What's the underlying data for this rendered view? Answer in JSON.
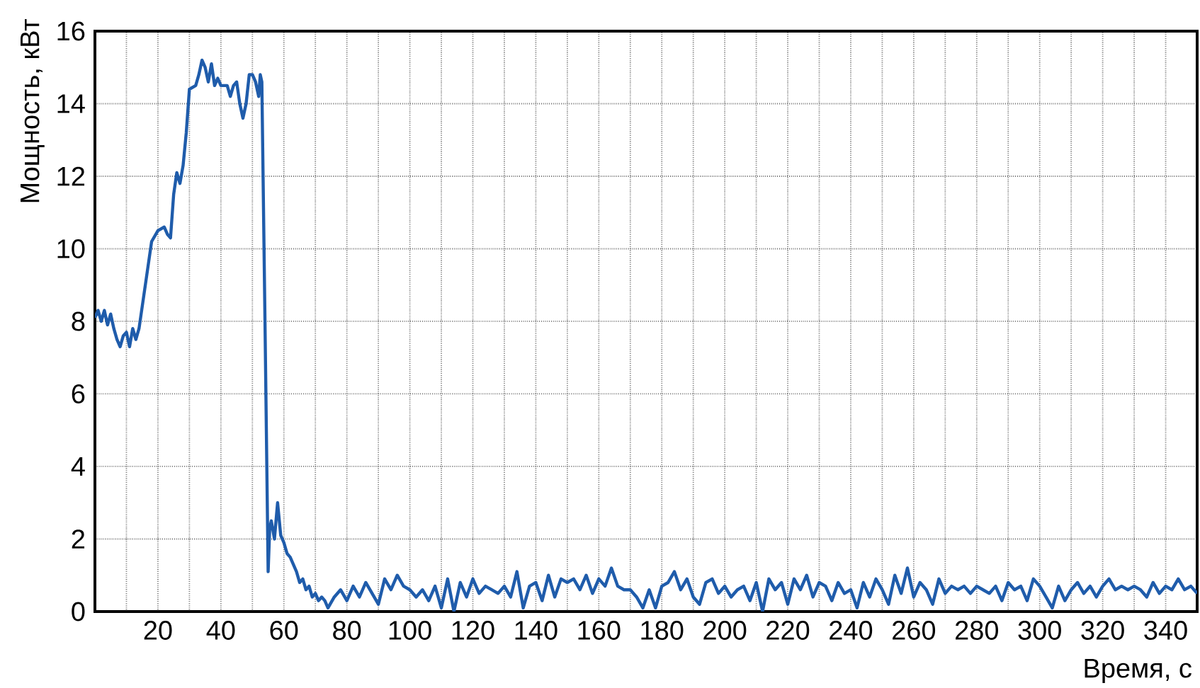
{
  "chart_data": {
    "type": "line",
    "xlabel": "Время, с",
    "ylabel": "Мощность, кВт",
    "xlim": [
      0,
      350
    ],
    "ylim": [
      0,
      16
    ],
    "xticks": [
      {
        "value": 10,
        "label": null
      },
      20,
      {
        "value": 30,
        "label": null
      },
      40,
      {
        "value": 50,
        "label": null
      },
      60,
      {
        "value": 70,
        "label": null
      },
      80,
      {
        "value": 90,
        "label": null
      },
      100,
      {
        "value": 110,
        "label": null
      },
      120,
      {
        "value": 130,
        "label": null
      },
      140,
      {
        "value": 150,
        "label": null
      },
      160,
      {
        "value": 170,
        "label": null
      },
      180,
      {
        "value": 190,
        "label": null
      },
      200,
      {
        "value": 210,
        "label": null
      },
      220,
      {
        "value": 230,
        "label": null
      },
      240,
      {
        "value": 250,
        "label": null
      },
      260,
      {
        "value": 270,
        "label": null
      },
      280,
      {
        "value": 290,
        "label": null
      },
      300,
      {
        "value": 310,
        "label": null
      },
      320,
      {
        "value": 330,
        "label": null
      },
      340
    ],
    "yticks": [
      0,
      2,
      4,
      6,
      8,
      10,
      12,
      14,
      16
    ],
    "grid": true,
    "marker": "none",
    "line_style": "solid",
    "series": [
      {
        "color": "#1f5cab",
        "x": [
          0,
          1,
          2,
          3,
          4,
          5,
          6,
          7,
          8,
          9,
          10,
          11,
          12,
          13,
          14,
          16,
          18,
          20,
          22,
          23,
          24,
          25,
          26,
          27,
          28,
          29,
          30,
          32,
          33,
          34,
          35,
          36,
          37,
          38,
          39,
          40,
          42,
          43,
          44,
          45,
          46,
          47,
          48,
          49,
          50,
          51,
          52,
          52.5,
          53,
          54,
          55,
          55.5,
          56,
          57,
          58,
          59,
          60,
          61,
          62,
          63,
          64,
          65,
          66,
          67,
          68,
          69,
          70,
          71,
          72,
          73,
          74,
          76,
          78,
          80,
          82,
          84,
          86,
          88,
          90,
          92,
          94,
          96,
          98,
          100,
          102,
          104,
          106,
          108,
          110,
          112,
          114,
          116,
          118,
          120,
          122,
          124,
          126,
          128,
          130,
          132,
          134,
          136,
          138,
          140,
          142,
          144,
          146,
          148,
          150,
          152,
          154,
          156,
          158,
          160,
          162,
          164,
          166,
          168,
          170,
          172,
          174,
          176,
          178,
          180,
          182,
          184,
          186,
          188,
          190,
          192,
          194,
          196,
          198,
          200,
          202,
          204,
          206,
          208,
          210,
          212,
          214,
          216,
          218,
          220,
          222,
          224,
          226,
          228,
          230,
          232,
          234,
          236,
          238,
          240,
          242,
          244,
          246,
          248,
          250,
          252,
          254,
          256,
          258,
          260,
          262,
          264,
          266,
          268,
          270,
          272,
          274,
          276,
          278,
          280,
          282,
          284,
          286,
          288,
          290,
          292,
          294,
          296,
          298,
          300,
          302,
          304,
          306,
          308,
          310,
          312,
          314,
          316,
          318,
          320,
          322,
          324,
          326,
          328,
          330,
          332,
          334,
          336,
          338,
          340,
          342,
          344,
          346,
          348,
          350
        ],
        "values": [
          8.1,
          8.3,
          8.0,
          8.3,
          7.9,
          8.2,
          7.8,
          7.5,
          7.3,
          7.6,
          7.7,
          7.3,
          7.8,
          7.5,
          7.8,
          9.0,
          10.2,
          10.5,
          10.6,
          10.4,
          10.3,
          11.5,
          12.1,
          11.8,
          12.3,
          13.2,
          14.4,
          14.5,
          14.8,
          15.2,
          15.0,
          14.6,
          15.1,
          14.5,
          14.7,
          14.5,
          14.5,
          14.2,
          14.5,
          14.6,
          14.0,
          13.6,
          14.0,
          14.8,
          14.8,
          14.6,
          14.2,
          14.8,
          14.6,
          8.0,
          1.1,
          2.3,
          2.5,
          2.0,
          3.0,
          2.1,
          1.9,
          1.6,
          1.5,
          1.3,
          1.1,
          0.8,
          0.9,
          0.6,
          0.7,
          0.4,
          0.5,
          0.3,
          0.4,
          0.3,
          0.1,
          0.4,
          0.6,
          0.3,
          0.7,
          0.4,
          0.8,
          0.5,
          0.2,
          0.9,
          0.6,
          1.0,
          0.7,
          0.6,
          0.4,
          0.6,
          0.3,
          0.7,
          0.1,
          0.9,
          0.0,
          0.8,
          0.4,
          0.9,
          0.5,
          0.7,
          0.6,
          0.5,
          0.7,
          0.4,
          1.1,
          0.1,
          0.7,
          0.8,
          0.3,
          1.0,
          0.4,
          0.9,
          0.8,
          0.9,
          0.6,
          1.0,
          0.5,
          0.9,
          0.7,
          1.2,
          0.7,
          0.6,
          0.6,
          0.4,
          0.1,
          0.6,
          0.1,
          0.7,
          0.8,
          1.1,
          0.6,
          0.9,
          0.4,
          0.2,
          0.8,
          0.9,
          0.5,
          0.7,
          0.4,
          0.6,
          0.7,
          0.3,
          0.8,
          0.0,
          0.9,
          0.6,
          0.8,
          0.2,
          0.9,
          0.6,
          1.0,
          0.4,
          0.8,
          0.7,
          0.3,
          0.8,
          0.5,
          0.6,
          0.1,
          0.8,
          0.4,
          0.9,
          0.6,
          0.2,
          1.0,
          0.5,
          1.2,
          0.4,
          0.8,
          0.6,
          0.2,
          0.9,
          0.5,
          0.7,
          0.6,
          0.7,
          0.5,
          0.7,
          0.6,
          0.5,
          0.7,
          0.3,
          0.8,
          0.6,
          0.7,
          0.3,
          0.9,
          0.7,
          0.4,
          0.1,
          0.7,
          0.3,
          0.6,
          0.8,
          0.5,
          0.7,
          0.4,
          0.7,
          0.9,
          0.6,
          0.7,
          0.6,
          0.7,
          0.6,
          0.4,
          0.8,
          0.5,
          0.7,
          0.6,
          0.9,
          0.6,
          0.7,
          0.5
        ]
      }
    ]
  }
}
